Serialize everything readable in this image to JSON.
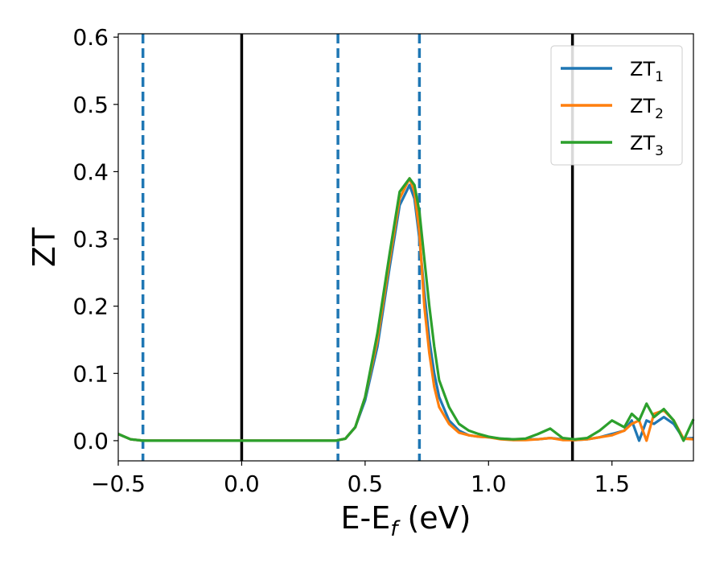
{
  "chart_data": {
    "type": "line",
    "xlabel": "E-E",
    "xlabel_sub": "f",
    "xlabel_unit": " (eV)",
    "ylabel": "ZT",
    "xlim": [
      -0.5,
      1.83
    ],
    "ylim": [
      -0.03,
      0.605
    ],
    "xticks": [
      -0.5,
      0.0,
      0.5,
      1.0,
      1.5
    ],
    "xtick_labels": [
      "−0.5",
      "0.0",
      "0.5",
      "1.0",
      "1.5"
    ],
    "yticks": [
      0.0,
      0.1,
      0.2,
      0.3,
      0.4,
      0.5,
      0.6
    ],
    "ytick_labels": [
      "0.0",
      "0.1",
      "0.2",
      "0.3",
      "0.4",
      "0.5",
      "0.6"
    ],
    "grid": false,
    "legend_position": "top-right",
    "vertical_lines": [
      {
        "x": -0.4,
        "style": "dashed",
        "color": "#1f77b4"
      },
      {
        "x": 0.0,
        "style": "solid",
        "color": "#000000"
      },
      {
        "x": 0.39,
        "style": "dashed",
        "color": "#1f77b4"
      },
      {
        "x": 0.72,
        "style": "dashed",
        "color": "#1f77b4"
      },
      {
        "x": 1.34,
        "style": "solid",
        "color": "#000000"
      }
    ],
    "series": [
      {
        "name": "ZT",
        "name_sub": "1",
        "color": "#1f77b4",
        "x": [
          -0.5,
          -0.45,
          -0.4,
          0.0,
          0.38,
          0.42,
          0.46,
          0.5,
          0.55,
          0.6,
          0.64,
          0.68,
          0.7,
          0.72,
          0.74,
          0.76,
          0.78,
          0.8,
          0.84,
          0.88,
          0.92,
          0.96,
          1.0,
          1.05,
          1.1,
          1.15,
          1.2,
          1.25,
          1.3,
          1.35,
          1.4,
          1.45,
          1.5,
          1.55,
          1.58,
          1.61,
          1.64,
          1.67,
          1.71,
          1.75,
          1.79,
          1.83
        ],
        "y": [
          0.01,
          0.002,
          0.0,
          0.0,
          0.0,
          0.003,
          0.02,
          0.06,
          0.14,
          0.26,
          0.35,
          0.38,
          0.36,
          0.3,
          0.22,
          0.15,
          0.1,
          0.065,
          0.03,
          0.015,
          0.008,
          0.006,
          0.005,
          0.003,
          0.002,
          0.002,
          0.002,
          0.004,
          0.002,
          0.001,
          0.002,
          0.005,
          0.01,
          0.015,
          0.03,
          0.0,
          0.03,
          0.025,
          0.035,
          0.025,
          0.003,
          0.004
        ]
      },
      {
        "name": "ZT",
        "name_sub": "2",
        "color": "#ff7f0e",
        "x": [
          -0.5,
          -0.45,
          -0.4,
          0.0,
          0.38,
          0.42,
          0.46,
          0.5,
          0.55,
          0.6,
          0.64,
          0.68,
          0.7,
          0.72,
          0.74,
          0.76,
          0.78,
          0.8,
          0.84,
          0.88,
          0.92,
          0.96,
          1.0,
          1.05,
          1.1,
          1.15,
          1.2,
          1.25,
          1.3,
          1.35,
          1.4,
          1.45,
          1.5,
          1.55,
          1.58,
          1.61,
          1.64,
          1.67,
          1.71,
          1.75,
          1.79,
          1.83
        ],
        "y": [
          0.01,
          0.002,
          0.0,
          0.0,
          0.0,
          0.003,
          0.02,
          0.065,
          0.15,
          0.27,
          0.36,
          0.39,
          0.37,
          0.31,
          0.2,
          0.13,
          0.08,
          0.05,
          0.025,
          0.012,
          0.008,
          0.006,
          0.005,
          0.002,
          0.001,
          0.001,
          0.002,
          0.004,
          0.001,
          0.001,
          0.002,
          0.005,
          0.008,
          0.015,
          0.025,
          0.03,
          0.0,
          0.04,
          0.045,
          0.03,
          0.003,
          0.002
        ]
      },
      {
        "name": "ZT",
        "name_sub": "3",
        "color": "#2ca02c",
        "x": [
          -0.5,
          -0.45,
          -0.4,
          0.0,
          0.38,
          0.42,
          0.46,
          0.5,
          0.55,
          0.6,
          0.64,
          0.68,
          0.7,
          0.72,
          0.74,
          0.76,
          0.78,
          0.8,
          0.84,
          0.88,
          0.92,
          0.96,
          1.0,
          1.05,
          1.1,
          1.15,
          1.2,
          1.25,
          1.3,
          1.35,
          1.4,
          1.45,
          1.5,
          1.55,
          1.58,
          1.61,
          1.64,
          1.67,
          1.71,
          1.75,
          1.79,
          1.83
        ],
        "y": [
          0.01,
          0.002,
          0.0,
          0.0,
          0.0,
          0.003,
          0.02,
          0.065,
          0.16,
          0.28,
          0.37,
          0.39,
          0.38,
          0.34,
          0.27,
          0.2,
          0.14,
          0.09,
          0.05,
          0.025,
          0.015,
          0.01,
          0.006,
          0.003,
          0.002,
          0.003,
          0.01,
          0.018,
          0.004,
          0.002,
          0.004,
          0.015,
          0.03,
          0.02,
          0.04,
          0.03,
          0.055,
          0.035,
          0.047,
          0.03,
          0.0,
          0.032
        ]
      }
    ]
  }
}
